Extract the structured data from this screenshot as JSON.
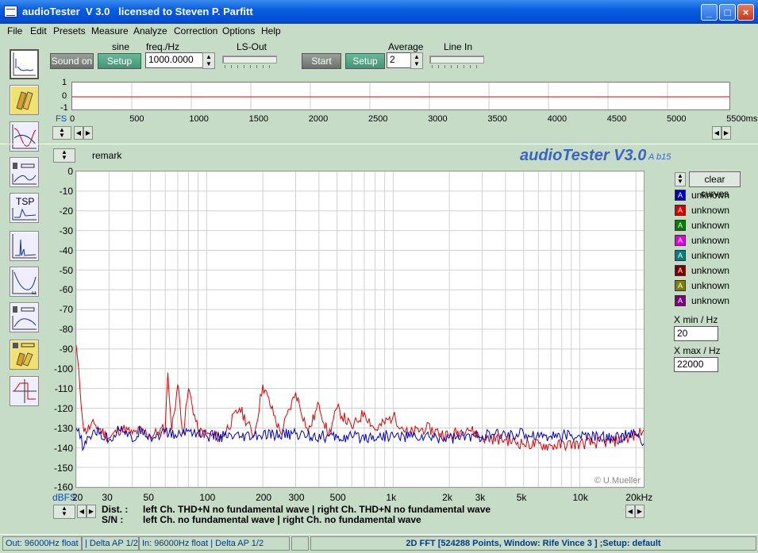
{
  "window": {
    "title": "audioTester  V 3.0   licensed to Steven P. Parfitt",
    "minimize": "_",
    "maximize": "□",
    "close": "×"
  },
  "menu": [
    "File",
    "Edit",
    "Presets",
    "Measure",
    "Analyze",
    "Correction",
    "Options",
    "Help"
  ],
  "generator": {
    "waveform_label": "sine",
    "freq_label": "freq./Hz",
    "freq_value": "1000.0000",
    "sound_on": "Sound on",
    "setup": "Setup",
    "ls_out_label": "LS-Out"
  },
  "input": {
    "start": "Start",
    "setup": "Setup",
    "average_label": "Average",
    "average_value": "2",
    "line_in_label": "Line In"
  },
  "time_plot": {
    "y_ticks": [
      "1",
      "0",
      "-1"
    ],
    "fs_label": "FS",
    "x_ticks": [
      "0",
      "500",
      "1000",
      "1500",
      "2000",
      "2500",
      "3000",
      "3500",
      "4000",
      "4500",
      "5000",
      "5500ms"
    ]
  },
  "remark_label": "remark",
  "brand": {
    "name": "audioTester V3.0",
    "sub": "A b15"
  },
  "copyright": "© U.Mueller",
  "fft_plot": {
    "y_unit": "dBFS",
    "y_ticks": [
      "0",
      "-10",
      "-20",
      "-30",
      "-40",
      "-50",
      "-60",
      "-70",
      "-80",
      "-90",
      "-100",
      "-110",
      "-120",
      "-130",
      "-140",
      "-150",
      "-160"
    ],
    "x_ticks": [
      "20",
      "30",
      "50",
      "100",
      "200",
      "300",
      "500",
      "1k",
      "2k",
      "3k",
      "5k",
      "10k",
      "20kHz"
    ]
  },
  "legend": {
    "clear": "clear curves",
    "items": [
      {
        "tag": "A",
        "color": "#0000c0",
        "label": "unknown"
      },
      {
        "tag": "A",
        "color": "#e00000",
        "label": "unknown"
      },
      {
        "tag": "A",
        "color": "#008000",
        "label": "unknown"
      },
      {
        "tag": "A",
        "color": "#e000e0",
        "label": "unknown"
      },
      {
        "tag": "A",
        "color": "#008080",
        "label": "unknown"
      },
      {
        "tag": "A",
        "color": "#800000",
        "label": "unknown"
      },
      {
        "tag": "A",
        "color": "#808000",
        "label": "unknown"
      },
      {
        "tag": "A",
        "color": "#800080",
        "label": "unknown"
      }
    ]
  },
  "xrange": {
    "min_label": "X min / Hz",
    "min_value": "20",
    "max_label": "X max / Hz",
    "max_value": "22000"
  },
  "results": {
    "dist_label": "Dist. :",
    "dist_text": "left Ch. THD+N  no fundamental wave  | right Ch. THD+N  no fundamental wave",
    "sn_label": "S/N :",
    "sn_text": "left Ch.  no fundamental wave  | right Ch.  no fundamental wave"
  },
  "status": {
    "out": "Out: 96000Hz float  | Delta AP 1/2",
    "in": "In: 96000Hz float  | Delta AP 1/2",
    "fft": "2D FFT [524288 Points, Window: Rife Vince 3 ] ;Setup:  default"
  },
  "chart_data": {
    "type": "line",
    "title": "",
    "xlabel": "",
    "ylabel": "dBFS",
    "xlim": [
      20,
      22000
    ],
    "ylim": [
      -160,
      0
    ],
    "x_scale": "log",
    "series": [
      {
        "color": "#e00000",
        "x": [
          20,
          22,
          25,
          30,
          35,
          40,
          45,
          50,
          55,
          60,
          62,
          65,
          70,
          75,
          80,
          90,
          100,
          120,
          150,
          180,
          200,
          250,
          300,
          350,
          400,
          450,
          500,
          600,
          700,
          800,
          1000,
          1200,
          1500,
          2000,
          2500,
          3000,
          4000,
          5000,
          7000,
          10000,
          15000,
          20000,
          22000
        ],
        "y": [
          -88,
          -132,
          -128,
          -135,
          -130,
          -133,
          -131,
          -134,
          -132,
          -130,
          -102,
          -131,
          -108,
          -133,
          -110,
          -132,
          -133,
          -135,
          -120,
          -134,
          -108,
          -133,
          -112,
          -132,
          -118,
          -134,
          -120,
          -130,
          -122,
          -131,
          -124,
          -133,
          -130,
          -134,
          -130,
          -135,
          -136,
          -138,
          -139,
          -138,
          -137,
          -134,
          -131
        ]
      },
      {
        "color": "#0000c0",
        "x": [
          20,
          22,
          25,
          30,
          35,
          40,
          45,
          50,
          60,
          70,
          80,
          100,
          150,
          200,
          300,
          500,
          1000,
          2000,
          3000,
          5000,
          7000,
          10000,
          15000,
          20000,
          22000
        ],
        "y": [
          -130,
          -140,
          -131,
          -136,
          -129,
          -137,
          -130,
          -135,
          -132,
          -134,
          -131,
          -134,
          -135,
          -134,
          -133,
          -135,
          -134,
          -135,
          -134,
          -133,
          -134,
          -134,
          -135,
          -133,
          -138
        ]
      }
    ]
  }
}
